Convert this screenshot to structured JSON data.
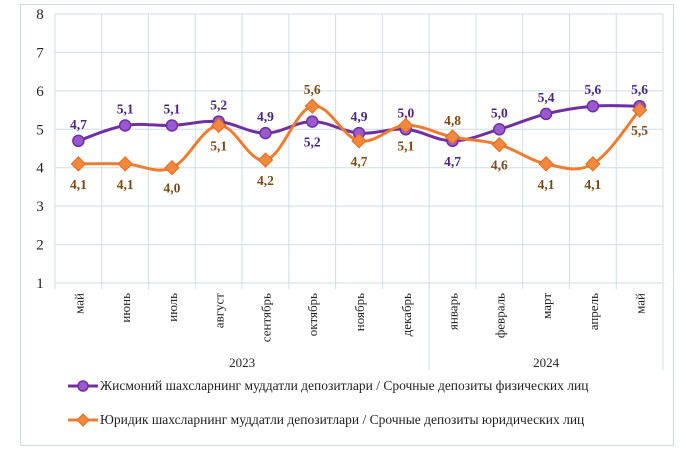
{
  "chart_data": {
    "type": "line",
    "categories": [
      "май",
      "июнь",
      "июль",
      "август",
      "сентябрь",
      "октябрь",
      "ноябрь",
      "декабрь",
      "январь",
      "февраль",
      "март",
      "апрель",
      "май"
    ],
    "groups": [
      {
        "label": "2023",
        "count": 8
      },
      {
        "label": "2024",
        "count": 5
      }
    ],
    "ylim": [
      1,
      8
    ],
    "yticks": [
      1,
      2,
      3,
      4,
      5,
      6,
      7,
      8
    ],
    "grid": true,
    "legend_position": "bottom",
    "series": [
      {
        "name": "Жисмоний шахсларнинг  муддатли  депозитлари  / Срочные депозиты  физических  лиц",
        "color": "#7030a0",
        "marker": "circle",
        "values": [
          4.7,
          5.1,
          5.1,
          5.2,
          4.9,
          5.2,
          4.9,
          5.0,
          4.7,
          5.0,
          5.4,
          5.6,
          5.6
        ],
        "labels": [
          "4,7",
          "5,1",
          "5,1",
          "5,2",
          "4,9",
          "5,2",
          "4,9",
          "5,0",
          "4,7",
          "5,0",
          "5,4",
          "5,6",
          "5,6"
        ]
      },
      {
        "name": "Юридик  шахсларнинг  муддатли  депозитлари  / Срочные депозиты  юридических  лиц",
        "color": "#ed7d31",
        "marker": "diamond",
        "values": [
          4.1,
          4.1,
          4.0,
          5.1,
          4.2,
          5.6,
          4.7,
          5.1,
          4.8,
          4.6,
          4.1,
          4.1,
          5.5
        ],
        "labels": [
          "4,1",
          "4,1",
          "4,0",
          "5,1",
          "4,2",
          "5,6",
          "4,7",
          "5,1",
          "4,8",
          "4,6",
          "4,1",
          "4,1",
          "5,5"
        ]
      }
    ]
  }
}
